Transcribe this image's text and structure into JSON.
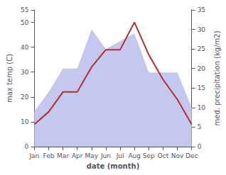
{
  "chart_data": {
    "type": "line",
    "xlabel": "date (month)",
    "ylabel": "max temp (C)",
    "y2label": "med. precipitation (kg/m2)",
    "categories": [
      "Jan",
      "Feb",
      "Mar",
      "Apr",
      "May",
      "Jun",
      "Jul",
      "Aug",
      "Sep",
      "Oct",
      "Nov",
      "Dec"
    ],
    "series": [
      {
        "type": "area",
        "axis": "y2",
        "color": "#c5c8ee",
        "values": [
          9,
          14,
          20,
          20,
          30,
          25,
          27,
          29,
          19,
          19,
          19,
          10
        ]
      },
      {
        "type": "line",
        "color": "#b03030",
        "values": [
          9,
          14,
          22,
          22,
          32,
          39,
          39,
          50,
          37,
          27,
          19,
          9
        ]
      }
    ],
    "ylim": [
      0,
      55
    ],
    "yticks": [
      0,
      10,
      20,
      30,
      40,
      50
    ],
    "y2lim": [
      0,
      35
    ],
    "y2ticks": [
      0,
      5,
      10,
      15,
      20,
      25,
      30,
      35
    ],
    "grid": false
  }
}
